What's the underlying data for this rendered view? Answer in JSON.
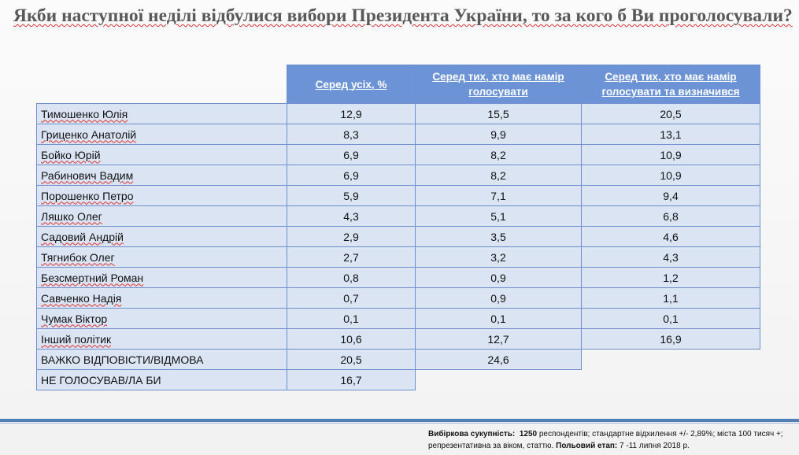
{
  "title": "Якби наступної неділі відбулися вибори Президента України, то за кого б Ви проголосували?",
  "headers": {
    "col1": "Серед усіх, %",
    "col2": "Серед тих, хто має намір голосувати",
    "col3": "Серед тих, хто має намір голосувати та визначився"
  },
  "rows": [
    {
      "name": "Тимошенко Юлія",
      "v1": "12,9",
      "v2": "15,5",
      "v3": "20,5"
    },
    {
      "name": "Гриценко Анатолій",
      "v1": "8,3",
      "v2": "9,9",
      "v3": "13,1"
    },
    {
      "name": "Бойко Юрій",
      "v1": "6,9",
      "v2": "8,2",
      "v3": "10,9"
    },
    {
      "name": "Рабинович Вадим",
      "v1": "6,9",
      "v2": "8,2",
      "v3": "10,9"
    },
    {
      "name": "Порошенко Петро",
      "v1": "5,9",
      "v2": "7,1",
      "v3": "9,4"
    },
    {
      "name": "Ляшко Олег",
      "v1": "4,3",
      "v2": "5,1",
      "v3": "6,8"
    },
    {
      "name": "Садовий Андрій",
      "v1": "2,9",
      "v2": "3,5",
      "v3": "4,6"
    },
    {
      "name": "Тягнибок Олег",
      "v1": "2,7",
      "v2": "3,2",
      "v3": "4,3"
    },
    {
      "name": "Безсмертний Роман",
      "v1": "0,8",
      "v2": "0,9",
      "v3": "1,2"
    },
    {
      "name": "Савченко Надія",
      "v1": "0,7",
      "v2": "0,9",
      "v3": "1,1"
    },
    {
      "name": "Чумак Віктор",
      "v1": "0,1",
      "v2": "0,1",
      "v3": "0,1"
    },
    {
      "name": "Інший політик",
      "v1": "10,6",
      "v2": "12,7",
      "v3": "16,9"
    }
  ],
  "hard_to_answer": {
    "name": "ВАЖКО ВІДПОВІСТИ/ВІДМОВА",
    "v1": "20,5",
    "v2": "24,6"
  },
  "not_voting": {
    "name": "НЕ ГОЛОСУВАВ/ЛА БИ",
    "v1": "16,7"
  },
  "footnote": {
    "sample_label": "Вибіркова сукупність:",
    "sample_size": "1250",
    "sample_text": "респондентів; стандартне відхилення +/- 2,89%; міста 100 тисяч +; репрезентативна за віком, статтю.",
    "field_label": "Польовий етап:",
    "field_dates": "7 -11 липня 2018 р."
  }
}
